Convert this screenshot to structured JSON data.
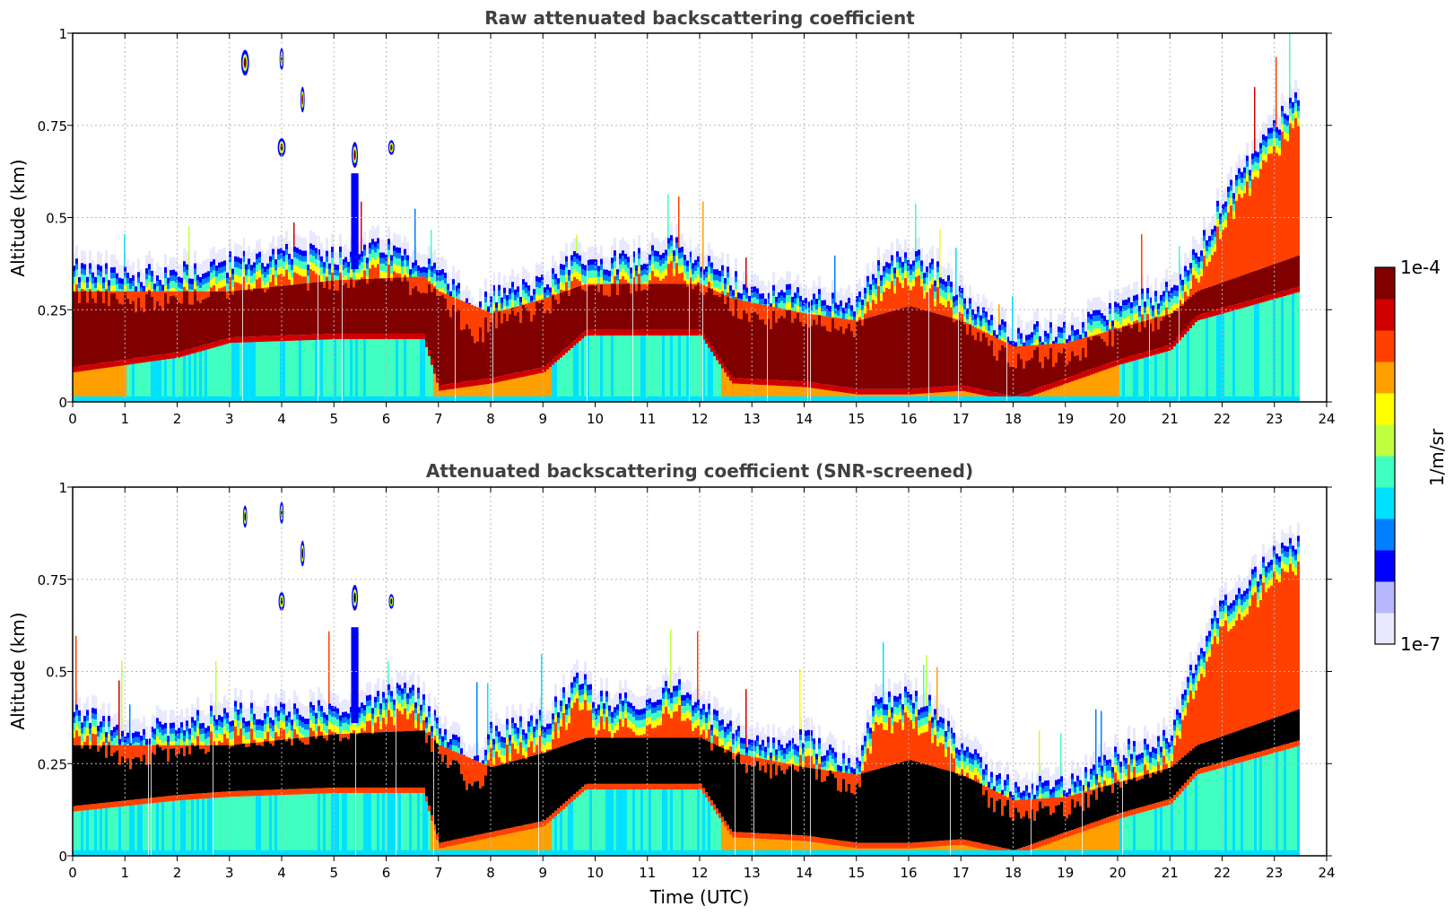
{
  "chart_data": [
    {
      "type": "heatmap",
      "id": "raw",
      "title": "Raw attenuated backscattering coefficient",
      "xlabel": "",
      "ylabel": "Altitude (km)",
      "xlim": [
        0,
        24
      ],
      "ylim": [
        0,
        1
      ],
      "xticks": [
        "0",
        "1",
        "2",
        "3",
        "4",
        "5",
        "6",
        "7",
        "8",
        "9",
        "10",
        "11",
        "12",
        "13",
        "14",
        "15",
        "16",
        "17",
        "18",
        "19",
        "20",
        "21",
        "22",
        "23",
        "24"
      ],
      "yticks": [
        "0",
        "0.25",
        "0.5",
        "0.75",
        "1"
      ],
      "grid": true,
      "data_end_time": 23.5,
      "layer_top_km": [
        [
          0,
          0.36
        ],
        [
          1,
          0.34
        ],
        [
          2,
          0.35
        ],
        [
          3,
          0.38
        ],
        [
          4,
          0.4
        ],
        [
          5,
          0.4
        ],
        [
          6,
          0.42
        ],
        [
          7,
          0.35
        ],
        [
          7.7,
          0.24
        ],
        [
          8,
          0.29
        ],
        [
          9,
          0.32
        ],
        [
          9.7,
          0.4
        ],
        [
          10,
          0.38
        ],
        [
          11,
          0.4
        ],
        [
          11.5,
          0.43
        ],
        [
          12,
          0.38
        ],
        [
          12.5,
          0.34
        ],
        [
          13,
          0.3
        ],
        [
          14,
          0.29
        ],
        [
          15,
          0.26
        ],
        [
          15.3,
          0.36
        ],
        [
          16,
          0.4
        ],
        [
          16.7,
          0.34
        ],
        [
          17,
          0.28
        ],
        [
          17.5,
          0.22
        ],
        [
          18,
          0.19
        ],
        [
          19,
          0.19
        ],
        [
          19.5,
          0.22
        ],
        [
          20,
          0.26
        ],
        [
          21,
          0.3
        ],
        [
          21.5,
          0.4
        ],
        [
          22,
          0.55
        ],
        [
          23,
          0.75
        ],
        [
          23.5,
          0.85
        ]
      ],
      "dense_layer_km": [
        [
          0,
          0.08,
          0.3
        ],
        [
          2,
          0.12,
          0.3
        ],
        [
          3,
          0.16,
          0.3
        ],
        [
          5,
          0.17,
          0.33
        ],
        [
          6.7,
          0.17,
          0.34
        ],
        [
          7,
          0.03,
          0.3
        ],
        [
          8,
          0.05,
          0.24
        ],
        [
          9,
          0.08,
          0.28
        ],
        [
          9.8,
          0.18,
          0.32
        ],
        [
          12,
          0.18,
          0.32
        ],
        [
          12.6,
          0.05,
          0.28
        ],
        [
          14,
          0.04,
          0.24
        ],
        [
          15,
          0.02,
          0.22
        ],
        [
          16,
          0.02,
          0.26
        ],
        [
          17,
          0.03,
          0.22
        ],
        [
          18,
          0.0,
          0.15
        ],
        [
          19,
          0.05,
          0.16
        ],
        [
          20,
          0.1,
          0.2
        ],
        [
          21,
          0.14,
          0.24
        ],
        [
          21.5,
          0.22,
          0.3
        ],
        [
          23.5,
          0.3,
          0.4
        ]
      ],
      "clouds": [
        [
          3.3,
          0.92,
          0.15,
          0.07
        ],
        [
          4.0,
          0.93,
          0.08,
          0.06
        ],
        [
          4.4,
          0.82,
          0.08,
          0.07
        ],
        [
          4.0,
          0.69,
          0.15,
          0.05
        ],
        [
          5.4,
          0.67,
          0.12,
          0.07
        ],
        [
          6.1,
          0.69,
          0.12,
          0.04
        ]
      ]
    },
    {
      "type": "heatmap",
      "id": "snr",
      "title": "Attenuated backscattering coefficient (SNR-screened)",
      "xlabel": "Time (UTC)",
      "ylabel": "Altitude (km)",
      "xlim": [
        0,
        24
      ],
      "ylim": [
        0,
        1
      ],
      "xticks": [
        "0",
        "1",
        "2",
        "3",
        "4",
        "5",
        "6",
        "7",
        "8",
        "9",
        "10",
        "11",
        "12",
        "13",
        "14",
        "15",
        "16",
        "17",
        "18",
        "19",
        "20",
        "21",
        "22",
        "23",
        "24"
      ],
      "yticks": [
        "0",
        "0.25",
        "0.5",
        "0.75",
        "1"
      ],
      "grid": true,
      "data_end_time": 23.5,
      "screened_color": "#000000",
      "layer_top_km": [
        [
          0,
          0.4
        ],
        [
          1,
          0.33
        ],
        [
          2,
          0.36
        ],
        [
          3,
          0.39
        ],
        [
          4,
          0.4
        ],
        [
          5,
          0.39
        ],
        [
          5.5,
          0.41
        ],
        [
          6,
          0.45
        ],
        [
          6.5,
          0.45
        ],
        [
          7,
          0.35
        ],
        [
          7.7,
          0.25
        ],
        [
          8,
          0.34
        ],
        [
          9,
          0.37
        ],
        [
          9.7,
          0.48
        ],
        [
          10,
          0.42
        ],
        [
          11,
          0.42
        ],
        [
          11.5,
          0.47
        ],
        [
          12,
          0.4
        ],
        [
          12.5,
          0.35
        ],
        [
          13,
          0.3
        ],
        [
          14,
          0.32
        ],
        [
          15,
          0.25
        ],
        [
          15.3,
          0.4
        ],
        [
          16,
          0.44
        ],
        [
          16.5,
          0.4
        ],
        [
          17,
          0.3
        ],
        [
          17.5,
          0.22
        ],
        [
          18,
          0.19
        ],
        [
          19,
          0.19
        ],
        [
          19.5,
          0.23
        ],
        [
          20,
          0.28
        ],
        [
          21,
          0.32
        ],
        [
          21.5,
          0.55
        ],
        [
          22,
          0.68
        ],
        [
          23,
          0.82
        ],
        [
          23.5,
          0.85
        ]
      ],
      "dense_layer_km": [
        [
          0,
          0.12,
          0.3
        ],
        [
          2,
          0.15,
          0.3
        ],
        [
          3,
          0.16,
          0.3
        ],
        [
          5,
          0.17,
          0.33
        ],
        [
          6.7,
          0.17,
          0.34
        ],
        [
          7,
          0.02,
          0.3
        ],
        [
          8,
          0.05,
          0.24
        ],
        [
          9,
          0.08,
          0.28
        ],
        [
          9.8,
          0.18,
          0.32
        ],
        [
          12,
          0.18,
          0.32
        ],
        [
          12.6,
          0.05,
          0.28
        ],
        [
          14,
          0.04,
          0.24
        ],
        [
          15,
          0.02,
          0.22
        ],
        [
          16,
          0.02,
          0.26
        ],
        [
          17,
          0.03,
          0.22
        ],
        [
          18,
          0.0,
          0.15
        ],
        [
          19,
          0.05,
          0.16
        ],
        [
          20,
          0.1,
          0.2
        ],
        [
          21,
          0.14,
          0.24
        ],
        [
          21.5,
          0.22,
          0.3
        ],
        [
          23.5,
          0.3,
          0.4
        ]
      ],
      "clouds": [
        [
          3.3,
          0.92,
          0.08,
          0.06
        ],
        [
          4.0,
          0.93,
          0.08,
          0.06
        ],
        [
          4.4,
          0.82,
          0.08,
          0.07
        ],
        [
          4.0,
          0.69,
          0.12,
          0.05
        ],
        [
          5.4,
          0.7,
          0.12,
          0.07
        ],
        [
          6.1,
          0.69,
          0.1,
          0.04
        ]
      ]
    }
  ],
  "colorbar": {
    "label": "1/m/sr",
    "max_label": "1e-4",
    "min_label": "1e-7",
    "scale": "log",
    "colors": [
      "#e8e8ff",
      "#b8b8ff",
      "#0000ff",
      "#0080ff",
      "#00e0ff",
      "#40ffc0",
      "#c0ff40",
      "#ffff00",
      "#ffa000",
      "#ff4000",
      "#d00000",
      "#800000"
    ]
  }
}
